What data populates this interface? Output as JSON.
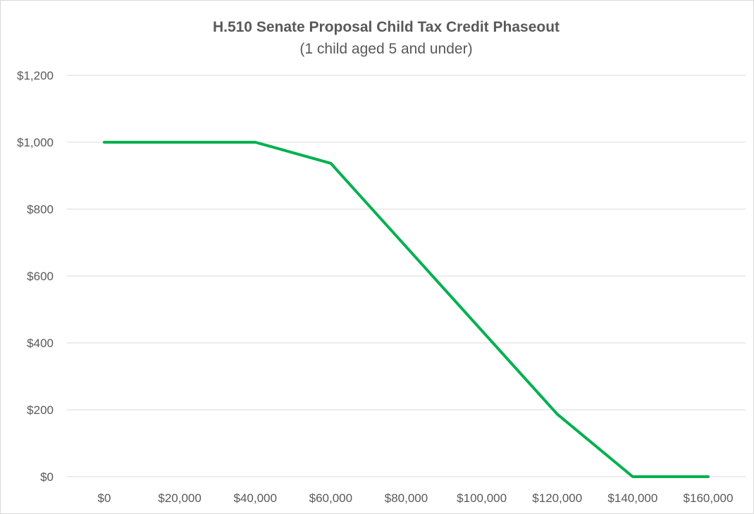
{
  "chart_data": {
    "type": "line",
    "title": "H.510 Senate Proposal Child Tax Credit Phaseout",
    "subtitle": "(1 child aged 5 and under)",
    "xlabel": "",
    "ylabel": "",
    "x_ticks": [
      "$0",
      "$20,000",
      "$40,000",
      "$60,000",
      "$80,000",
      "$100,000",
      "$120,000",
      "$140,000",
      "$160,000"
    ],
    "y_ticks": [
      "$0",
      "$200",
      "$400",
      "$600",
      "$800",
      "$1,000",
      "$1,200"
    ],
    "xlim": [
      0,
      160000
    ],
    "ylim": [
      0,
      1200
    ],
    "grid": "horizontal",
    "legend": "none",
    "series": [
      {
        "color": "#00b050",
        "points": [
          {
            "x": 0,
            "y": 1000
          },
          {
            "x": 40000,
            "y": 1000
          },
          {
            "x": 60000,
            "y": 937
          },
          {
            "x": 120000,
            "y": 187
          },
          {
            "x": 140000,
            "y": 0
          },
          {
            "x": 160000,
            "y": 0
          }
        ]
      }
    ]
  }
}
